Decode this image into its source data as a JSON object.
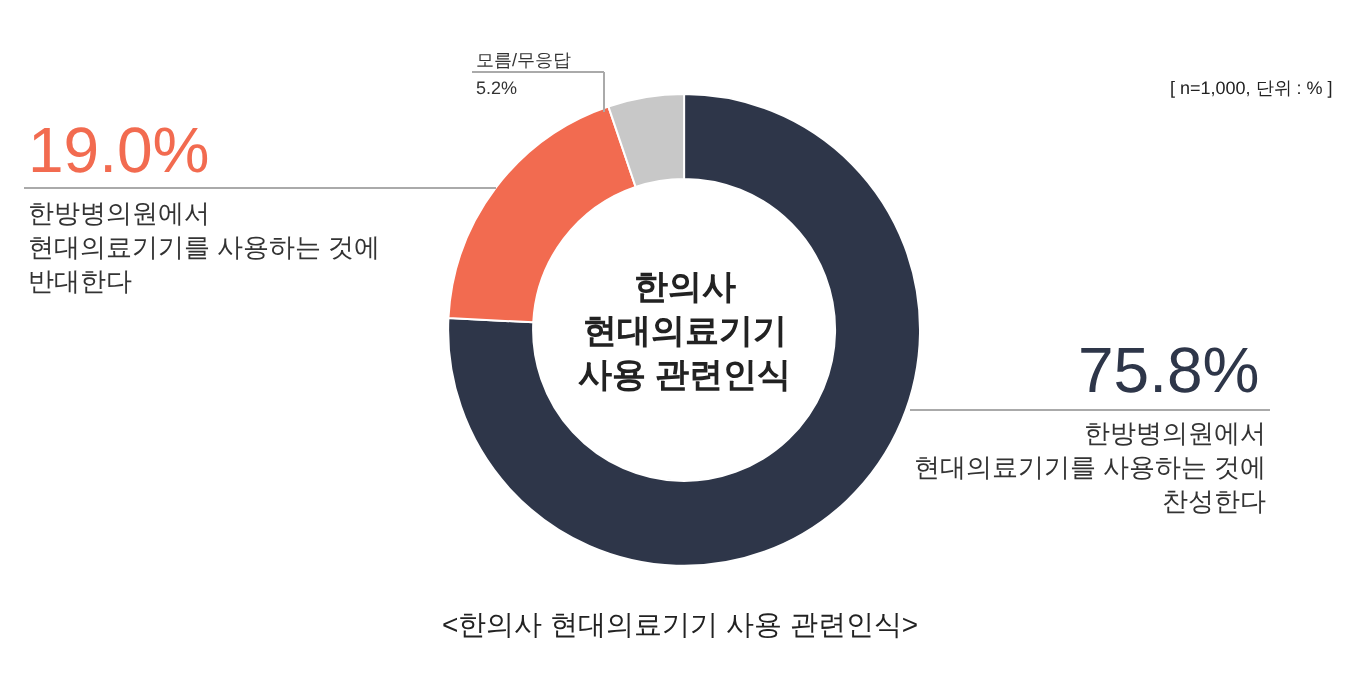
{
  "chart_data": {
    "type": "donut",
    "title": "<한의사 현대의료기기 사용 관련인식>",
    "categories": [
      "한방병의원에서\n현대의료기기를 사용하는 것에\n찬성한다",
      "한방병의원에서\n현대의료기기를 사용하는 것에\n반대한다",
      "모름/무응답"
    ],
    "values": [
      75.8,
      19.0,
      5.2
    ],
    "value_labels": [
      "75.8%",
      "19.0%",
      "5.2%"
    ],
    "colors": [
      "#2e3649",
      "#f26b50",
      "#c8c8c8"
    ],
    "annotations": [
      "한의사\n현대의료기기\n사용 관련인식",
      "[ n=1,000, 단위 : % ]"
    ],
    "legend": false
  }
}
